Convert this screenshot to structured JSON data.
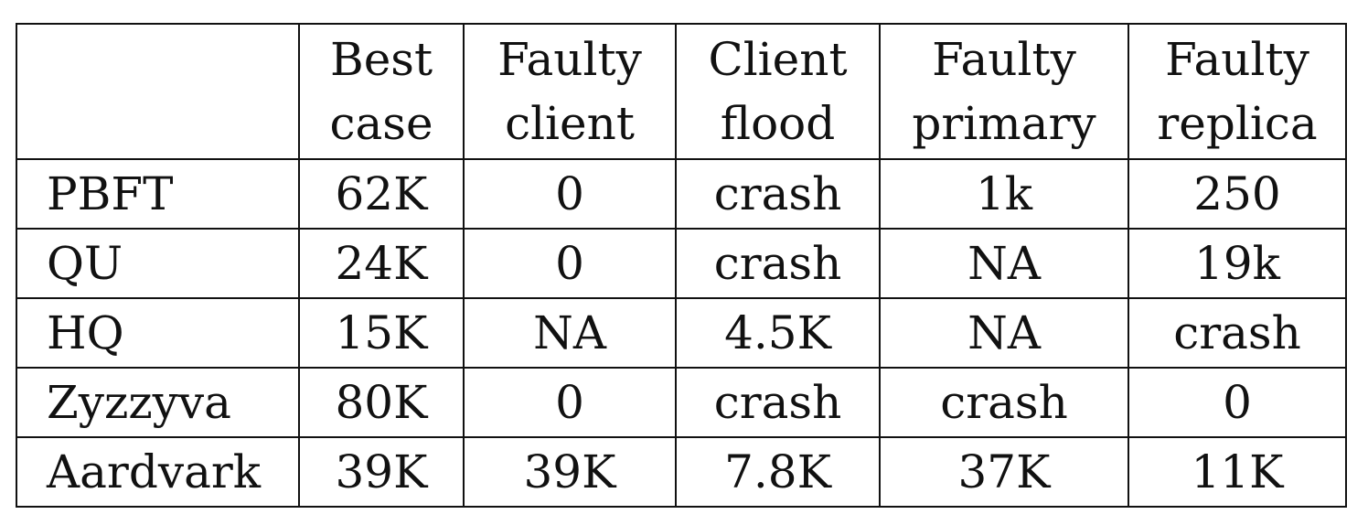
{
  "table": {
    "corner": "",
    "columns": [
      [
        "Best",
        "case"
      ],
      [
        "Faulty",
        "client"
      ],
      [
        "Client",
        "flood"
      ],
      [
        "Faulty",
        "primary"
      ],
      [
        "Faulty",
        "replica"
      ]
    ],
    "rows": [
      {
        "label": "PBFT",
        "values": [
          "62K",
          "0",
          "crash",
          "1k",
          "250"
        ]
      },
      {
        "label": "QU",
        "values": [
          "24K",
          "0",
          "crash",
          "NA",
          "19k"
        ]
      },
      {
        "label": "HQ",
        "values": [
          "15K",
          "NA",
          "4.5K",
          "NA",
          "crash"
        ]
      },
      {
        "label": "Zyzzyva",
        "values": [
          "80K",
          "0",
          "crash",
          "crash",
          "0"
        ]
      },
      {
        "label": "Aardvark",
        "values": [
          "39K",
          "39K",
          "7.8K",
          "37K",
          "11K"
        ]
      }
    ]
  }
}
